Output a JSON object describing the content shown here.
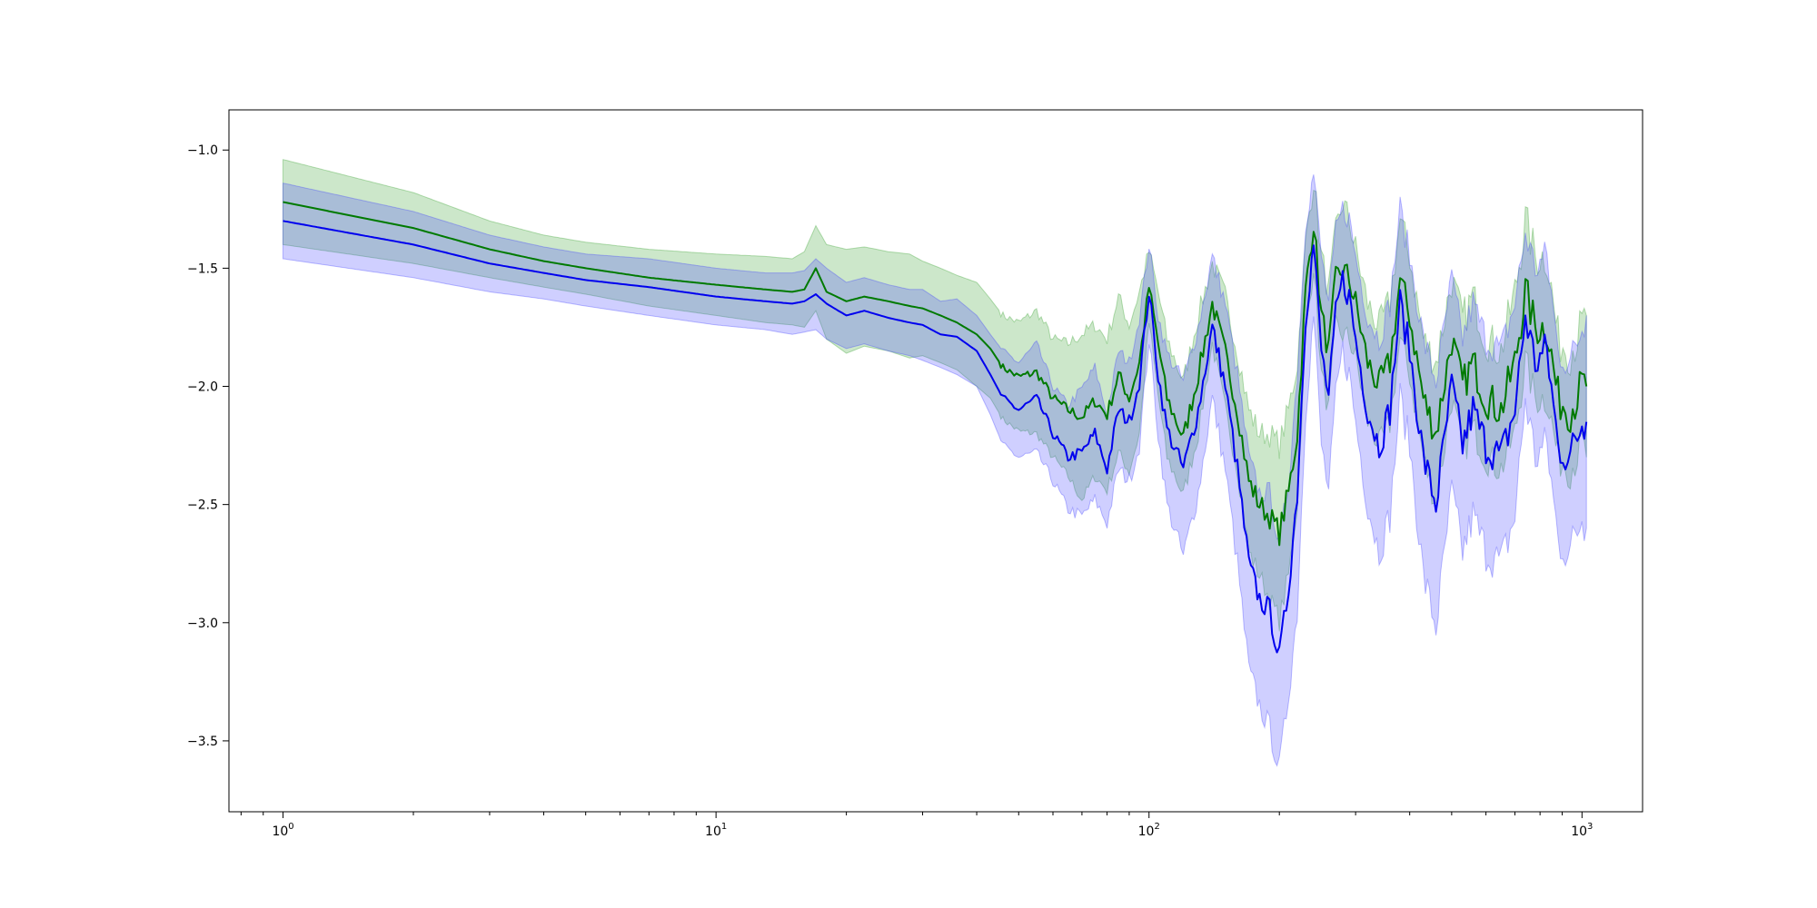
{
  "chart_data": {
    "type": "line",
    "title": "",
    "xlabel": "",
    "ylabel": "",
    "xscale": "log",
    "xlim": [
      0.75,
      1380
    ],
    "ylim": [
      -3.8,
      -0.83
    ],
    "grid": false,
    "legend": "none",
    "x_ticks": [
      {
        "value": 1,
        "base": "10",
        "exp": "0"
      },
      {
        "value": 10,
        "base": "10",
        "exp": "1"
      },
      {
        "value": 100,
        "base": "10",
        "exp": "2"
      },
      {
        "value": 1000,
        "base": "10",
        "exp": "3"
      }
    ],
    "y_ticks": [
      {
        "value": -1.0,
        "label": "−1.0"
      },
      {
        "value": -1.5,
        "label": "−1.5"
      },
      {
        "value": -2.0,
        "label": "−2.0"
      },
      {
        "value": -2.5,
        "label": "−2.5"
      },
      {
        "value": -3.0,
        "label": "−3.0"
      },
      {
        "value": -3.5,
        "label": "−3.5"
      }
    ],
    "colors": {
      "green_line": "#007a00",
      "green_band": "#33a02c",
      "blue_line": "#0000ee",
      "blue_band": "#4040ff"
    },
    "series": [
      {
        "color": "green",
        "points": [
          [
            1,
            -1.22,
            -1.04
          ],
          [
            2,
            -1.33,
            -1.18
          ],
          [
            3,
            -1.42,
            -1.3
          ],
          [
            4,
            -1.47,
            -1.36
          ],
          [
            5,
            -1.5,
            -1.39
          ],
          [
            7,
            -1.54,
            -1.42
          ],
          [
            10,
            -1.57,
            -1.44
          ],
          [
            13,
            -1.59,
            -1.45
          ],
          [
            15,
            -1.6,
            -1.46
          ],
          [
            16,
            -1.59,
            -1.43
          ],
          [
            17,
            -1.5,
            -1.32
          ],
          [
            18,
            -1.6,
            -1.4
          ],
          [
            20,
            -1.64,
            -1.42
          ],
          [
            22,
            -1.62,
            -1.41
          ],
          [
            25,
            -1.64,
            -1.43
          ],
          [
            28,
            -1.66,
            -1.44
          ],
          [
            30,
            -1.67,
            -1.47
          ],
          [
            33,
            -1.7,
            -1.5
          ],
          [
            36,
            -1.73,
            -1.53
          ],
          [
            40,
            -1.78,
            -1.56
          ],
          [
            43,
            -1.84,
            -1.63
          ],
          [
            46,
            -1.92,
            -1.7
          ],
          [
            50,
            -1.96,
            -1.73
          ],
          [
            55,
            -1.94,
            -1.68
          ],
          [
            60,
            -2.05,
            -1.8
          ],
          [
            65,
            -2.1,
            -1.82
          ],
          [
            70,
            -2.13,
            -1.78
          ],
          [
            75,
            -2.06,
            -1.74
          ],
          [
            80,
            -2.12,
            -1.8
          ],
          [
            85,
            -1.95,
            -1.62
          ],
          [
            90,
            -2.05,
            -1.74
          ],
          [
            95,
            -1.9,
            -1.6
          ],
          [
            100,
            -1.58,
            -1.43
          ],
          [
            105,
            -1.82,
            -1.6
          ],
          [
            110,
            -2.05,
            -1.8
          ],
          [
            120,
            -2.22,
            -1.98
          ],
          [
            130,
            -1.95,
            -1.7
          ],
          [
            140,
            -1.65,
            -1.48
          ],
          [
            150,
            -1.86,
            -1.62
          ],
          [
            160,
            -2.1,
            -1.85
          ],
          [
            170,
            -2.4,
            -2.1
          ],
          [
            180,
            -2.5,
            -2.2
          ],
          [
            190,
            -2.55,
            -2.2
          ],
          [
            200,
            -2.62,
            -2.25
          ],
          [
            210,
            -2.45,
            -2.1
          ],
          [
            220,
            -2.2,
            -1.9
          ],
          [
            230,
            -1.6,
            -1.4
          ],
          [
            240,
            -1.3,
            -1.12
          ],
          [
            250,
            -1.7,
            -1.45
          ],
          [
            260,
            -1.85,
            -1.6
          ],
          [
            270,
            -1.55,
            -1.35
          ],
          [
            280,
            -1.5,
            -1.22
          ],
          [
            290,
            -1.55,
            -1.3
          ],
          [
            300,
            -1.65,
            -1.42
          ],
          [
            320,
            -1.9,
            -1.65
          ],
          [
            340,
            -2.0,
            -1.75
          ],
          [
            360,
            -1.9,
            -1.64
          ],
          [
            380,
            -1.55,
            -1.3
          ],
          [
            400,
            -1.7,
            -1.45
          ],
          [
            430,
            -2.05,
            -1.8
          ],
          [
            460,
            -2.2,
            -1.9
          ],
          [
            500,
            -1.8,
            -1.55
          ],
          [
            530,
            -2.0,
            -1.72
          ],
          [
            560,
            -1.9,
            -1.62
          ],
          [
            600,
            -2.05,
            -1.8
          ],
          [
            650,
            -2.1,
            -1.85
          ],
          [
            700,
            -1.9,
            -1.6
          ],
          [
            740,
            -1.6,
            -1.3
          ],
          [
            780,
            -1.75,
            -1.45
          ],
          [
            830,
            -1.75,
            -1.45
          ],
          [
            880,
            -2.05,
            -1.8
          ],
          [
            940,
            -2.1,
            -1.85
          ],
          [
            1000,
            -2.0,
            -1.75
          ],
          [
            1024,
            -2.0,
            -1.7
          ]
        ]
      },
      {
        "color": "blue",
        "points": [
          [
            1,
            -1.3,
            -1.46
          ],
          [
            2,
            -1.4,
            -1.54
          ],
          [
            3,
            -1.48,
            -1.6
          ],
          [
            4,
            -1.52,
            -1.63
          ],
          [
            5,
            -1.55,
            -1.66
          ],
          [
            7,
            -1.58,
            -1.7
          ],
          [
            10,
            -1.62,
            -1.74
          ],
          [
            13,
            -1.64,
            -1.76
          ],
          [
            15,
            -1.65,
            -1.78
          ],
          [
            16,
            -1.64,
            -1.77
          ],
          [
            17,
            -1.61,
            -1.76
          ],
          [
            18,
            -1.65,
            -1.8
          ],
          [
            20,
            -1.7,
            -1.84
          ],
          [
            22,
            -1.68,
            -1.82
          ],
          [
            25,
            -1.71,
            -1.85
          ],
          [
            28,
            -1.73,
            -1.87
          ],
          [
            30,
            -1.74,
            -1.89
          ],
          [
            33,
            -1.78,
            -1.92
          ],
          [
            36,
            -1.79,
            -1.95
          ],
          [
            40,
            -1.85,
            -2.0
          ],
          [
            43,
            -1.95,
            -2.12
          ],
          [
            46,
            -2.05,
            -2.25
          ],
          [
            50,
            -2.1,
            -2.3
          ],
          [
            55,
            -2.05,
            -2.28
          ],
          [
            60,
            -2.2,
            -2.4
          ],
          [
            65,
            -2.3,
            -2.52
          ],
          [
            70,
            -2.28,
            -2.55
          ],
          [
            75,
            -2.2,
            -2.48
          ],
          [
            80,
            -2.35,
            -2.58
          ],
          [
            85,
            -2.1,
            -2.35
          ],
          [
            90,
            -2.15,
            -2.4
          ],
          [
            95,
            -1.98,
            -2.25
          ],
          [
            100,
            -1.6,
            -1.8
          ],
          [
            105,
            -1.95,
            -2.2
          ],
          [
            110,
            -2.18,
            -2.5
          ],
          [
            120,
            -2.35,
            -2.72
          ],
          [
            130,
            -2.1,
            -2.45
          ],
          [
            140,
            -1.75,
            -2.05
          ],
          [
            150,
            -2.0,
            -2.35
          ],
          [
            160,
            -2.35,
            -2.75
          ],
          [
            170,
            -2.75,
            -3.2
          ],
          [
            180,
            -2.9,
            -3.35
          ],
          [
            190,
            -2.95,
            -3.45
          ],
          [
            200,
            -3.15,
            -3.62
          ],
          [
            210,
            -2.85,
            -3.3
          ],
          [
            220,
            -2.45,
            -2.95
          ],
          [
            230,
            -1.7,
            -2.1
          ],
          [
            240,
            -1.4,
            -1.7
          ],
          [
            250,
            -1.85,
            -2.25
          ],
          [
            260,
            -2.05,
            -2.45
          ],
          [
            270,
            -1.7,
            -2.05
          ],
          [
            280,
            -1.55,
            -1.85
          ],
          [
            290,
            -1.62,
            -1.95
          ],
          [
            300,
            -1.8,
            -2.15
          ],
          [
            320,
            -2.1,
            -2.5
          ],
          [
            340,
            -2.25,
            -2.7
          ],
          [
            360,
            -2.1,
            -2.55
          ],
          [
            380,
            -1.65,
            -2.05
          ],
          [
            400,
            -1.85,
            -2.25
          ],
          [
            430,
            -2.3,
            -2.8
          ],
          [
            460,
            -2.5,
            -3.02
          ],
          [
            500,
            -2.0,
            -2.45
          ],
          [
            530,
            -2.25,
            -2.7
          ],
          [
            560,
            -2.1,
            -2.55
          ],
          [
            600,
            -2.25,
            -2.7
          ],
          [
            650,
            -2.3,
            -2.75
          ],
          [
            700,
            -2.1,
            -2.55
          ],
          [
            740,
            -1.7,
            -2.05
          ],
          [
            780,
            -1.9,
            -2.3
          ],
          [
            830,
            -1.85,
            -2.25
          ],
          [
            880,
            -2.25,
            -2.65
          ],
          [
            940,
            -2.3,
            -2.7
          ],
          [
            1000,
            -2.15,
            -2.55
          ],
          [
            1024,
            -2.15,
            -2.6
          ]
        ]
      }
    ]
  }
}
